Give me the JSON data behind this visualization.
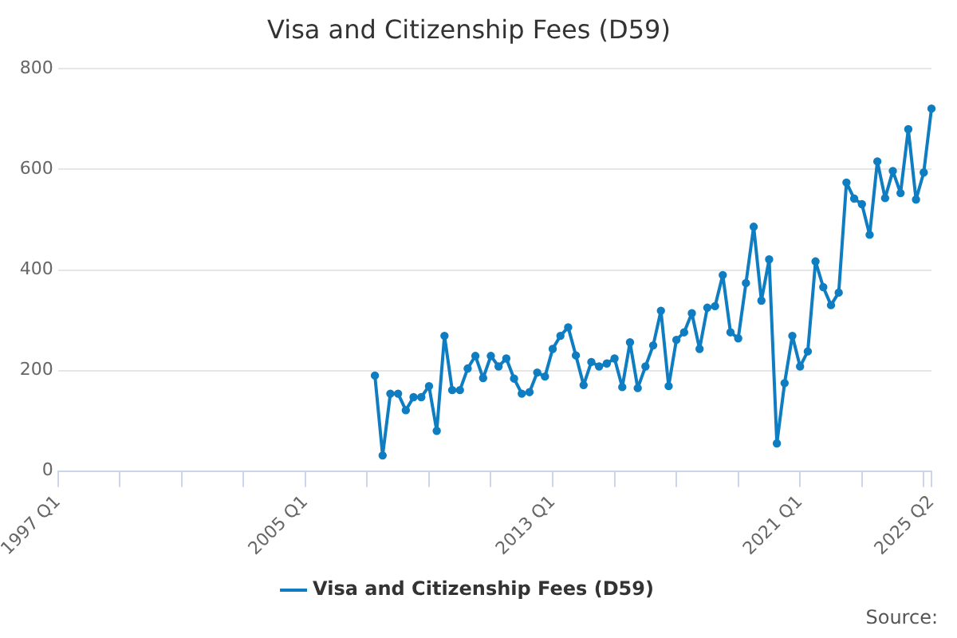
{
  "chart_data": {
    "type": "line",
    "title": "Visa and Citizenship Fees (D59)",
    "categories": [
      "1997 Q1",
      null,
      null,
      null,
      null,
      null,
      null,
      null,
      null,
      null,
      null,
      null,
      null,
      null,
      null,
      null,
      null,
      null,
      null,
      null,
      null,
      null,
      null,
      null,
      null,
      null,
      null,
      null,
      null,
      null,
      null,
      null,
      "2005 Q1",
      null,
      null,
      null,
      null,
      null,
      null,
      null,
      null,
      null,
      null,
      null,
      null,
      null,
      null,
      null,
      null,
      null,
      null,
      null,
      null,
      null,
      null,
      null,
      null,
      null,
      null,
      null,
      null,
      null,
      null,
      null,
      "2013 Q1",
      null,
      null,
      null,
      null,
      null,
      null,
      null,
      null,
      null,
      null,
      null,
      null,
      null,
      null,
      null,
      null,
      null,
      null,
      null,
      null,
      null,
      null,
      null,
      null,
      null,
      null,
      null,
      null,
      null,
      null,
      null,
      "2021 Q1",
      null,
      null,
      null,
      null,
      null,
      null,
      null,
      null,
      null,
      null,
      null,
      null,
      null,
      null,
      null,
      null,
      "2025 Q2"
    ],
    "series": [
      {
        "name": "Visa and Citizenship Fees (D59)",
        "color": "#0f7dc2",
        "values": [
          null,
          null,
          null,
          null,
          null,
          null,
          null,
          null,
          null,
          null,
          null,
          null,
          null,
          null,
          null,
          null,
          null,
          null,
          null,
          null,
          null,
          null,
          null,
          null,
          null,
          null,
          null,
          null,
          null,
          null,
          null,
          null,
          null,
          null,
          null,
          null,
          null,
          null,
          null,
          null,
          null,
          190,
          31,
          154,
          154,
          121,
          147,
          147,
          169,
          80,
          269,
          161,
          161,
          204,
          229,
          185,
          229,
          208,
          224,
          184,
          154,
          157,
          196,
          188,
          243,
          269,
          286,
          230,
          171,
          217,
          208,
          214,
          224,
          167,
          256,
          165,
          208,
          250,
          319,
          169,
          261,
          276,
          314,
          243,
          325,
          328,
          390,
          276,
          264,
          374,
          486,
          339,
          421,
          55,
          175,
          269,
          208,
          238,
          417,
          366,
          330,
          355,
          574,
          542,
          531,
          470,
          616,
          543,
          597,
          553,
          680,
          540,
          594,
          721
        ]
      }
    ],
    "ylim": [
      0,
      800
    ],
    "yticks": [
      0,
      200,
      400,
      600,
      800
    ],
    "grid": "y",
    "legend": "bottom",
    "marker": "circle",
    "line_style": "solid",
    "annotations": [
      "Source:"
    ]
  }
}
